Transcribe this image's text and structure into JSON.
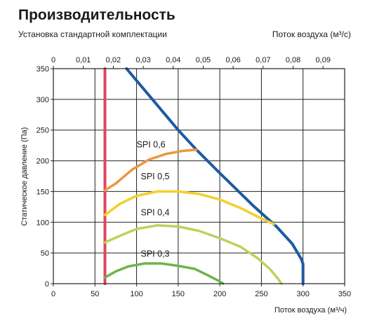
{
  "chart_data": {
    "type": "line",
    "title": "Производительность",
    "subtitle": "Установка стандартной комплектации",
    "x_axis": {
      "label": "Поток воздуха (м³/ч)",
      "range": [
        0,
        350
      ],
      "ticks": [
        "0",
        "50",
        "100",
        "150",
        "200",
        "250",
        "300",
        "350"
      ],
      "tick_values": [
        0,
        50,
        100,
        150,
        200,
        250,
        300,
        350
      ],
      "grid": true
    },
    "x2_axis": {
      "label": "Поток воздуха (м³/с)",
      "range": [
        0,
        0.0972
      ],
      "ticks": [
        "0",
        "0,01",
        "0,02",
        "0,03",
        "0,04",
        "0,05",
        "0,06",
        "0,07",
        "0,08",
        "0,09"
      ],
      "tick_values": [
        0,
        0.01,
        0.02,
        0.03,
        0.04,
        0.05,
        0.06,
        0.07,
        0.08,
        0.09
      ]
    },
    "y_axis": {
      "label": "Статическое давление (Па)",
      "range": [
        0,
        350
      ],
      "ticks": [
        "0",
        "50",
        "100",
        "150",
        "200",
        "250",
        "300",
        "350"
      ],
      "tick_values": [
        0,
        50,
        100,
        150,
        200,
        250,
        300,
        350
      ],
      "grid": true
    },
    "series": [
      {
        "color": "#e0455c",
        "width": 4,
        "points": [
          [
            62,
            0
          ],
          [
            62,
            350
          ]
        ]
      },
      {
        "color": "#1e5aa0",
        "width": 4,
        "points": [
          [
            88,
            350
          ],
          [
            150,
            250
          ],
          [
            172,
            218
          ],
          [
            200,
            180
          ],
          [
            240,
            127
          ],
          [
            268,
            93
          ],
          [
            287,
            65
          ],
          [
            298,
            40
          ],
          [
            300,
            32
          ],
          [
            300,
            0
          ]
        ]
      },
      {
        "name": "SPI 0,6",
        "color": "#ec9640",
        "width": 3.5,
        "points": [
          [
            62,
            152
          ],
          [
            75,
            163
          ],
          [
            95,
            186
          ],
          [
            115,
            202
          ],
          [
            135,
            211
          ],
          [
            155,
            216
          ],
          [
            172,
            218
          ]
        ]
      },
      {
        "name": "SPI 0,5",
        "color": "#f2d02b",
        "width": 3.5,
        "points": [
          [
            62,
            112
          ],
          [
            80,
            130
          ],
          [
            100,
            143
          ],
          [
            125,
            150
          ],
          [
            150,
            150
          ],
          [
            175,
            146
          ],
          [
            200,
            137
          ],
          [
            225,
            123
          ],
          [
            250,
            106
          ],
          [
            265,
            97
          ]
        ]
      },
      {
        "name": "SPI 0,4",
        "color": "#b9d45a",
        "width": 3.5,
        "points": [
          [
            62,
            67
          ],
          [
            80,
            78
          ],
          [
            100,
            89
          ],
          [
            125,
            95
          ],
          [
            150,
            93
          ],
          [
            175,
            86
          ],
          [
            200,
            74
          ],
          [
            225,
            60
          ],
          [
            245,
            42
          ],
          [
            260,
            24
          ],
          [
            270,
            8
          ],
          [
            274,
            0
          ]
        ]
      },
      {
        "name": "SPI 0,3",
        "color": "#6eb34a",
        "width": 3.5,
        "points": [
          [
            62,
            10
          ],
          [
            75,
            20
          ],
          [
            90,
            28
          ],
          [
            110,
            33
          ],
          [
            130,
            33
          ],
          [
            150,
            29
          ],
          [
            170,
            24
          ],
          [
            185,
            14
          ],
          [
            198,
            5
          ],
          [
            204,
            0
          ]
        ]
      }
    ],
    "annotations": [
      {
        "text": "SPI 0,6",
        "x": 100,
        "y": 222
      },
      {
        "text": "SPI 0,5",
        "x": 105,
        "y": 170
      },
      {
        "text": "SPI 0,4",
        "x": 105,
        "y": 111
      },
      {
        "text": "SPI 0,3",
        "x": 105,
        "y": 44
      }
    ]
  }
}
